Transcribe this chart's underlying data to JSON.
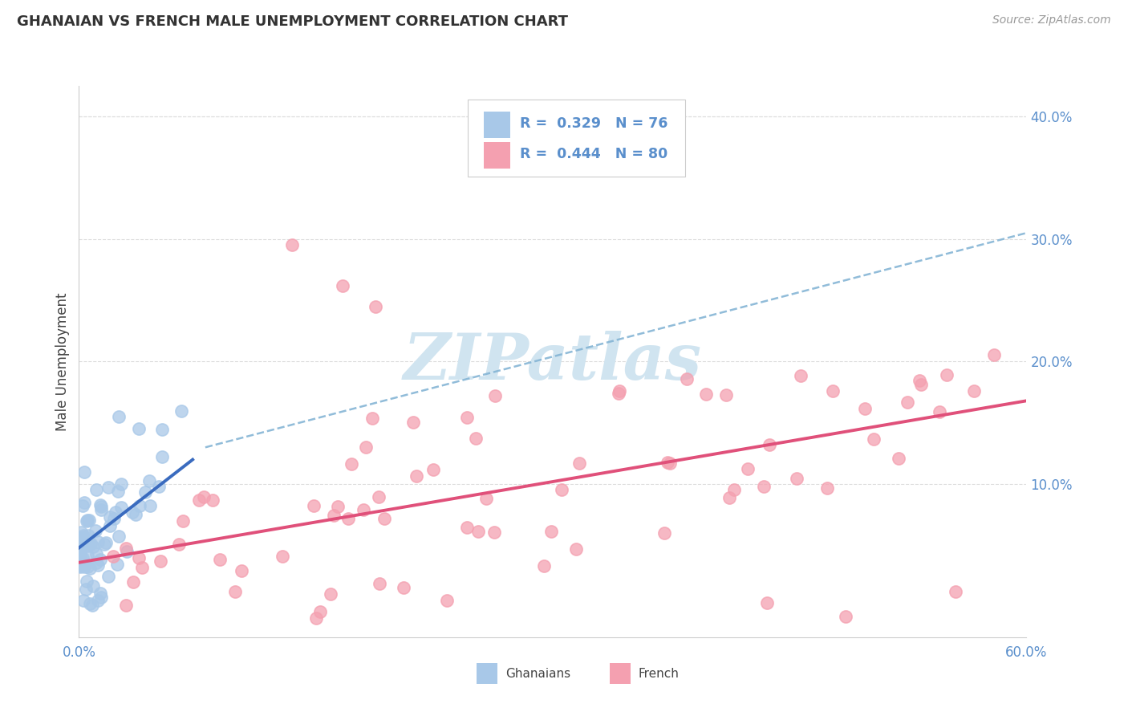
{
  "title": "GHANAIAN VS FRENCH MALE UNEMPLOYMENT CORRELATION CHART",
  "source": "Source: ZipAtlas.com",
  "ylabel": "Male Unemployment",
  "ghanaian_color": "#a8c8e8",
  "french_color": "#f4a0b0",
  "trend_ghanaian_color": "#3a6bbf",
  "trend_french_color": "#e0507a",
  "dashed_color": "#85b5d5",
  "watermark_color": "#d0e4f0",
  "background": "#ffffff",
  "xlim": [
    0.0,
    0.6
  ],
  "ylim": [
    -0.025,
    0.425
  ],
  "title_fontsize": 13,
  "source_fontsize": 10,
  "tick_color": "#5a8fcc",
  "label_color": "#444444",
  "grid_color": "#dddddd"
}
